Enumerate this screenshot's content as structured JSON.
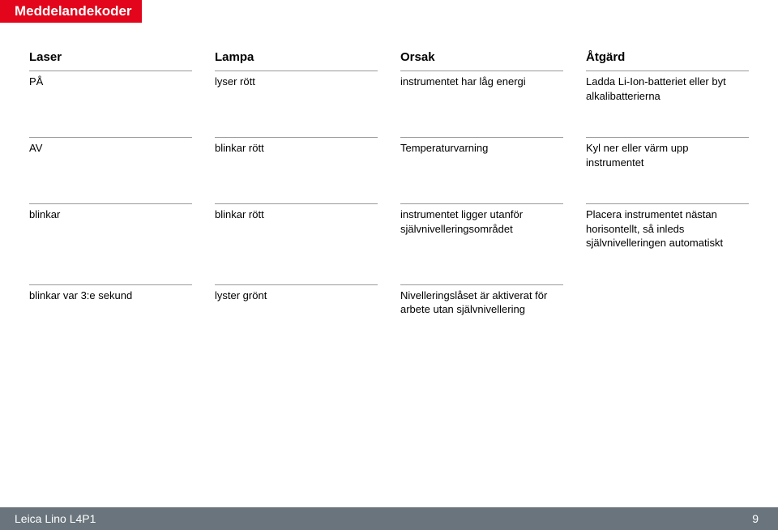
{
  "colors": {
    "title_bg": "#e2051b",
    "title_fg": "#ffffff",
    "footer_bg": "#69747c",
    "footer_fg": "#ffffff",
    "rule": "#9a9a9a",
    "text": "#000000",
    "page_bg": "#ffffff"
  },
  "typography": {
    "title_fontsize_pt": 13,
    "header_fontsize_pt": 11,
    "body_fontsize_pt": 10,
    "footer_fontsize_pt": 10,
    "font_family": "Arial"
  },
  "title": "Meddelandekoder",
  "footer": {
    "product": "Leica Lino L4P1",
    "page": "9"
  },
  "table": {
    "type": "table",
    "columns": [
      "Laser",
      "Lampa",
      "Orsak",
      "Åtgärd"
    ],
    "rows": [
      {
        "laser": "PÅ",
        "lampa": "lyser rött",
        "orsak": "instrumentet har låg energi",
        "atgard": "Ladda Li-Ion-batteriet eller byt alkalibatterierna"
      },
      {
        "laser": "AV",
        "lampa": "blinkar rött",
        "orsak": "Temperaturvarning",
        "atgard": "Kyl ner eller värm upp instrumentet"
      },
      {
        "laser": "blinkar",
        "lampa": "blinkar rött",
        "orsak": "instrumentet ligger utanför självnivelleringsområdet",
        "atgard": "Placera instrumentet nästan horisontellt, så inleds självnivelleringen automatiskt"
      },
      {
        "laser": "blinkar var 3:e sekund",
        "lampa": "lyster grönt",
        "orsak": "Nivelleringslåset är aktiverat för arbete utan självnivellering",
        "atgard": ""
      }
    ]
  }
}
